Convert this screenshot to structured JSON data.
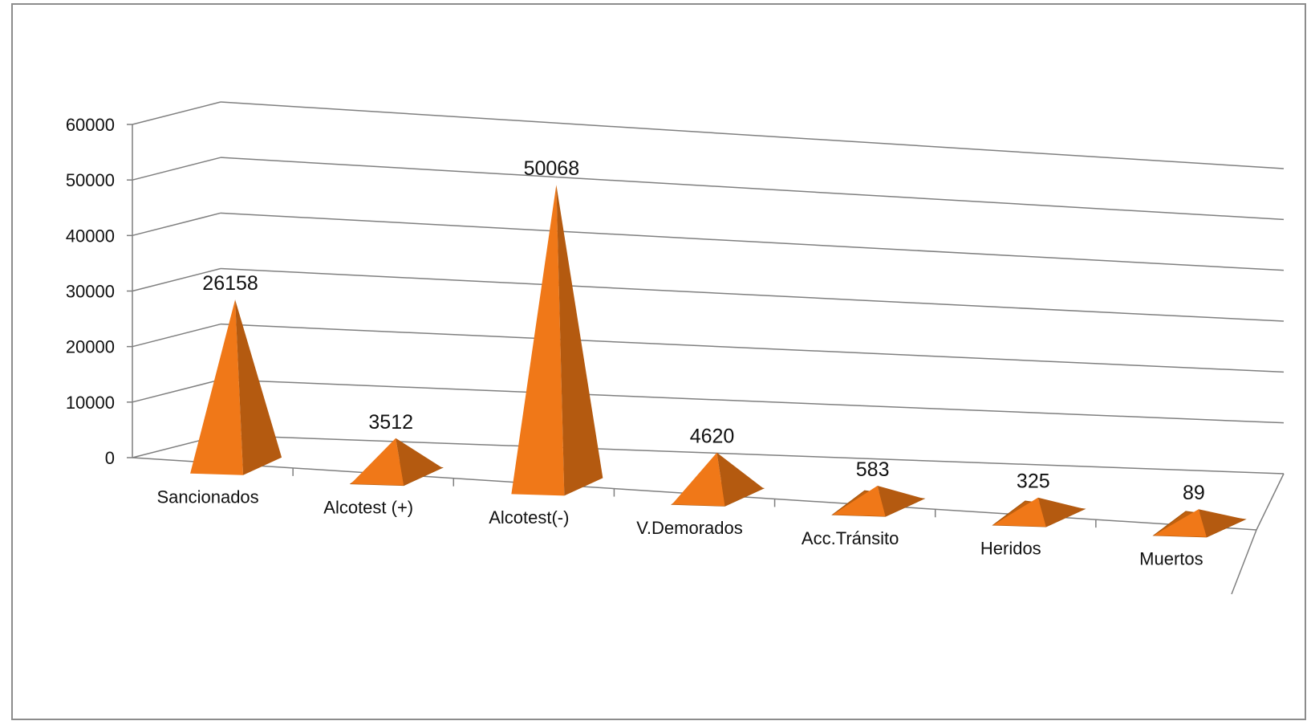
{
  "chart_data": {
    "type": "bar",
    "style": "3d-pyramid",
    "categories": [
      "Sancionados",
      "Alcotest (+)",
      "Alcotest(-)",
      "V.Demorados",
      "Acc.Tránsito",
      "Heridos",
      "Muertos"
    ],
    "values": [
      26158,
      3512,
      50068,
      4620,
      583,
      325,
      89
    ],
    "data_labels": [
      "26158",
      "3512",
      "50068",
      "4620",
      "583",
      "325",
      "89"
    ],
    "y_ticks": [
      "0",
      "10000",
      "20000",
      "30000",
      "40000",
      "50000",
      "60000"
    ],
    "ylim": [
      0,
      60000
    ],
    "grid": true,
    "legend": "none",
    "colors": {
      "front": "#f07818",
      "side": "#b45a10",
      "base": "#c0610f",
      "grid": "#7f7f7f",
      "frame": "#8c8c8c"
    }
  }
}
